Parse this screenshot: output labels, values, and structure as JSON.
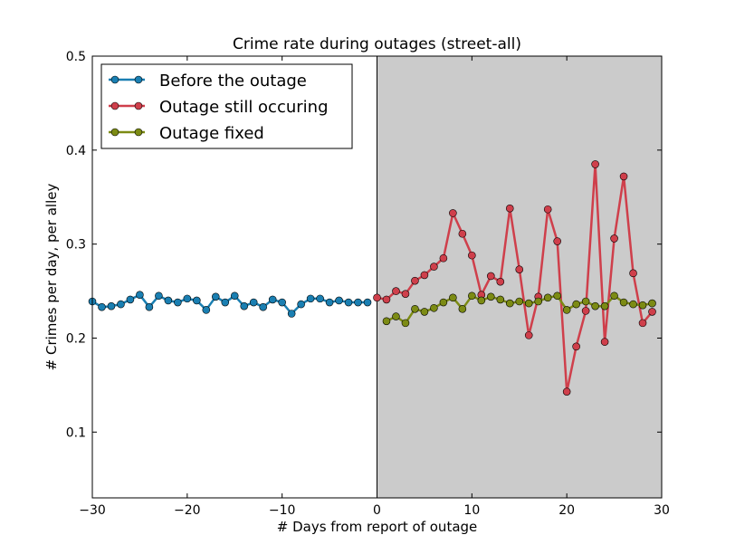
{
  "chart_data": {
    "type": "line",
    "title": "Crime rate during outages (street-all)",
    "xlabel": "# Days from report of outage",
    "ylabel": "# Crimes per day, per alley",
    "xlim": [
      -30,
      30
    ],
    "ylim": [
      0.03,
      0.5
    ],
    "x_ticks": [
      -30,
      -20,
      -10,
      0,
      10,
      20,
      30
    ],
    "x_tick_labels": [
      "−30",
      "−20",
      "−10",
      "0",
      "10",
      "20",
      "30"
    ],
    "y_ticks": [
      0.1,
      0.2,
      0.3,
      0.4,
      0.5
    ],
    "y_tick_labels": [
      "0.1",
      "0.2",
      "0.3",
      "0.4",
      "0.5"
    ],
    "grid": false,
    "legend_position": "top-left",
    "shaded_region": {
      "x_from": 0,
      "x_to": 30,
      "color": "#cbcbcb"
    },
    "vertical_line_x": 0,
    "series": [
      {
        "name": "Before the outage",
        "color": "#1a7fb2",
        "x": [
          -30,
          -29,
          -28,
          -27,
          -26,
          -25,
          -24,
          -23,
          -22,
          -21,
          -20,
          -19,
          -18,
          -17,
          -16,
          -15,
          -14,
          -13,
          -12,
          -11,
          -10,
          -9,
          -8,
          -7,
          -6,
          -5,
          -4,
          -3,
          -2,
          -1
        ],
        "y": [
          0.239,
          0.233,
          0.234,
          0.236,
          0.241,
          0.246,
          0.233,
          0.245,
          0.24,
          0.238,
          0.242,
          0.24,
          0.23,
          0.244,
          0.238,
          0.245,
          0.234,
          0.238,
          0.233,
          0.241,
          0.238,
          0.226,
          0.236,
          0.242,
          0.242,
          0.238,
          0.24,
          0.238,
          0.238,
          0.238
        ]
      },
      {
        "name": "Outage still occuring",
        "color": "#cf3f4b",
        "x": [
          0,
          1,
          2,
          3,
          4,
          5,
          6,
          7,
          8,
          9,
          10,
          11,
          12,
          13,
          14,
          15,
          16,
          17,
          18,
          19,
          20,
          21,
          22,
          23,
          24,
          25,
          26,
          27,
          28,
          29
        ],
        "y": [
          0.243,
          0.241,
          0.25,
          0.247,
          0.261,
          0.267,
          0.276,
          0.285,
          0.333,
          0.311,
          0.288,
          0.246,
          0.266,
          0.26,
          0.338,
          0.273,
          0.203,
          0.244,
          0.337,
          0.303,
          0.143,
          0.191,
          0.229,
          0.385,
          0.196,
          0.306,
          0.372,
          0.269,
          0.216,
          0.228
        ]
      },
      {
        "name": "Outage fixed",
        "color": "#7c8b14",
        "x": [
          1,
          2,
          3,
          4,
          5,
          6,
          7,
          8,
          9,
          10,
          11,
          12,
          13,
          14,
          15,
          16,
          17,
          18,
          19,
          20,
          21,
          22,
          23,
          24,
          25,
          26,
          27,
          28,
          29
        ],
        "y": [
          0.218,
          0.223,
          0.216,
          0.231,
          0.228,
          0.232,
          0.238,
          0.243,
          0.231,
          0.245,
          0.24,
          0.244,
          0.241,
          0.237,
          0.239,
          0.237,
          0.239,
          0.243,
          0.245,
          0.23,
          0.236,
          0.239,
          0.234,
          0.234,
          0.245,
          0.238,
          0.236,
          0.235,
          0.237
        ]
      }
    ]
  }
}
